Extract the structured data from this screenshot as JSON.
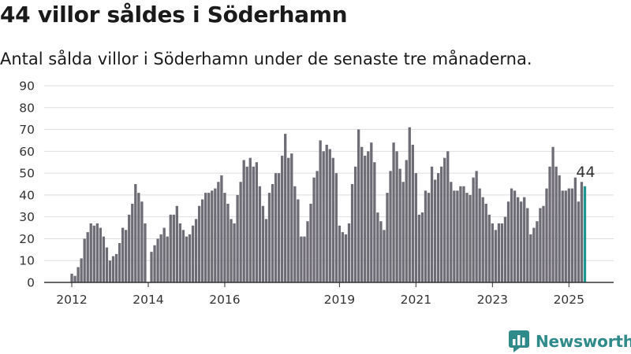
{
  "title": "44 villor såldes i Söderhamn",
  "subtitle": "Antal sålda villor i Söderhamn under de senaste tre månaderna.",
  "brand": "Newsworthy",
  "colors": {
    "bar": "#6e6c74",
    "highlight": "#1f9790",
    "grid": "#dddddd",
    "brand": "#2f8a8a"
  },
  "chart_data": {
    "type": "bar",
    "ylim": [
      0,
      90
    ],
    "yticks": [
      0,
      10,
      20,
      30,
      40,
      50,
      60,
      70,
      80,
      90
    ],
    "xticks": [
      {
        "label": "2012",
        "index": 0
      },
      {
        "label": "2014",
        "index": 24
      },
      {
        "label": "2016",
        "index": 48
      },
      {
        "label": "2019",
        "index": 84
      },
      {
        "label": "2021",
        "index": 108
      },
      {
        "label": "2023",
        "index": 132
      },
      {
        "label": "2025",
        "index": 156
      }
    ],
    "values": [
      4,
      3,
      7,
      11,
      20,
      23,
      27,
      26,
      27,
      25,
      21,
      16,
      10,
      12,
      13,
      18,
      25,
      24,
      31,
      36,
      45,
      41,
      37,
      27,
      0,
      14,
      17,
      20,
      22,
      25,
      21,
      31,
      31,
      35,
      27,
      24,
      21,
      22,
      26,
      29,
      35,
      38,
      41,
      41,
      42,
      43,
      46,
      49,
      41,
      36,
      29,
      27,
      40,
      46,
      56,
      53,
      57,
      53,
      55,
      44,
      35,
      29,
      41,
      45,
      50,
      50,
      58,
      68,
      57,
      59,
      44,
      38,
      21,
      21,
      28,
      36,
      48,
      51,
      65,
      60,
      63,
      61,
      57,
      50,
      26,
      23,
      22,
      27,
      45,
      53,
      70,
      62,
      58,
      60,
      64,
      55,
      32,
      28,
      24,
      41,
      51,
      64,
      60,
      52,
      46,
      56,
      71,
      63,
      50,
      31,
      32,
      42,
      41,
      53,
      47,
      50,
      53,
      57,
      60,
      46,
      42,
      42,
      44,
      44,
      41,
      40,
      48,
      51,
      43,
      39,
      36,
      31,
      27,
      24,
      27,
      27,
      30,
      37,
      43,
      42,
      39,
      37,
      39,
      34,
      22,
      25,
      28,
      34,
      35,
      43,
      53,
      62,
      53,
      49,
      42,
      42,
      43,
      43,
      48,
      37,
      46,
      44
    ],
    "highlight_index": 161,
    "annotation": {
      "index": 161,
      "text": "44"
    }
  }
}
